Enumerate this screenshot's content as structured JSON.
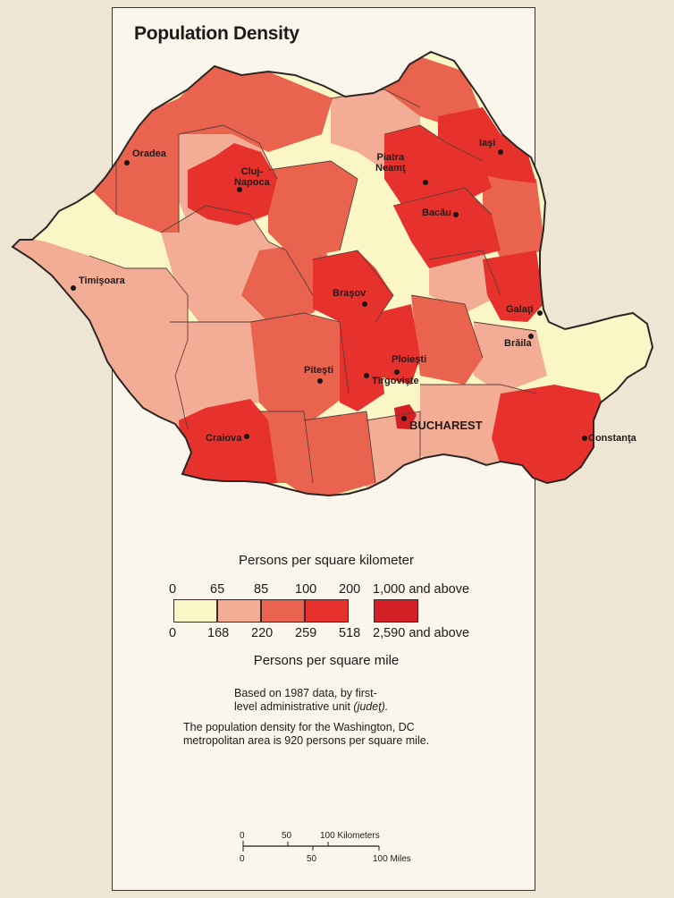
{
  "title": "Population Density",
  "colors": {
    "background": "#efe5d4",
    "paper": "#fbf6ec",
    "class_1": "#fbf6c6",
    "class_2": "#f3ad96",
    "class_3": "#e9634e",
    "class_4": "#e6312d",
    "class_5": "#d41f24",
    "border": "#5c3e38",
    "outline": "#2b2624"
  },
  "cities": {
    "oradea": "Oradea",
    "cluj": "Cluj-\nNapoca",
    "timisoara": "Timişoara",
    "piatra": "Piatra\nNeamţ",
    "iasi": "Iaşi",
    "bacau": "Bacău",
    "brasov": "Braşov",
    "galati": "Galaţi",
    "braila": "Brăila",
    "ploiesti": "Ploieşti",
    "targoviste": "Tîrgovişte",
    "pitesti": "Piteşti",
    "bucharest": "BUCHAREST",
    "craiova": "Craiova",
    "constanta": "Constanţa"
  },
  "legend": {
    "heading_km": "Persons per square kilometer",
    "heading_mi": "Persons per square mile",
    "km_ticks": [
      "0",
      "65",
      "85",
      "100",
      "200"
    ],
    "km_top": "1,000 and above",
    "mi_ticks": [
      "0",
      "168",
      "220",
      "259",
      "518"
    ],
    "mi_top": "2,590 and above"
  },
  "notes": {
    "basis_line1": "Based on 1987 data, by first-",
    "basis_line2_a": "level administrative unit ",
    "basis_line2_b": "(judeţ).",
    "compare_line1": "The population density for the Washington, DC",
    "compare_line2": "metropolitan area is 920 persons per square mile."
  },
  "scale": {
    "km": [
      "0",
      "50",
      "100 Kilometers"
    ],
    "mi": [
      "0",
      "50",
      "100 Miles"
    ]
  }
}
